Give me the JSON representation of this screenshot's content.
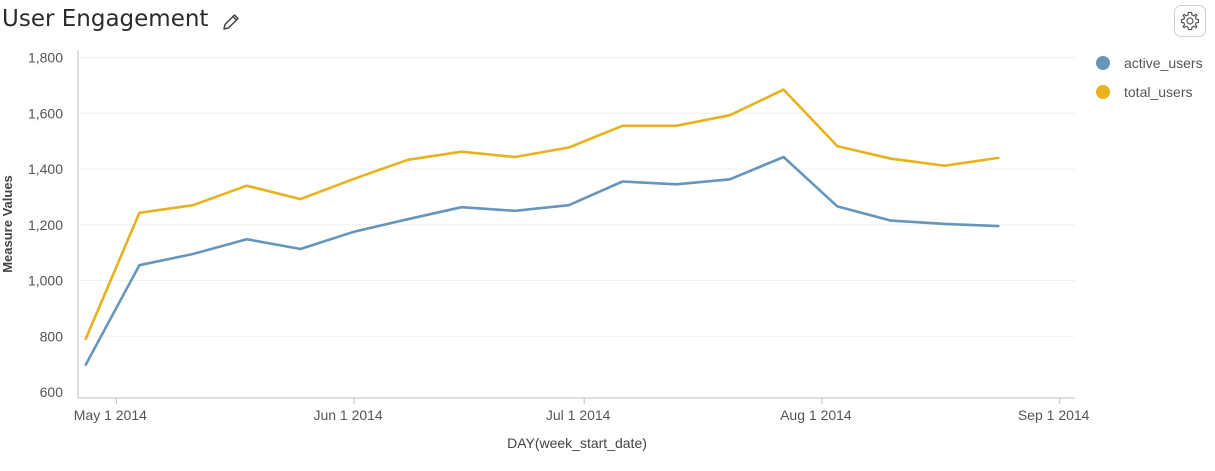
{
  "header": {
    "title": "User Engagement",
    "edit_icon": "pencil-icon",
    "settings_icon": "gear-icon"
  },
  "chart_data": {
    "type": "line",
    "xlabel": "DAY(week_start_date)",
    "ylabel": "Measure Values",
    "ylim": [
      600,
      1800
    ],
    "y_ticks": [
      600,
      800,
      1000,
      1200,
      1400,
      1600,
      1800
    ],
    "y_tick_labels": [
      "600",
      "800",
      "1,000",
      "1,200",
      "1,400",
      "1,600",
      "1,800"
    ],
    "x_ticks": [
      "2014-05-01",
      "2014-06-01",
      "2014-07-01",
      "2014-08-01",
      "2014-09-01"
    ],
    "x_tick_labels": [
      "May 1 2014",
      "Jun 1 2014",
      "Jul 1 2014",
      "Aug 1 2014",
      "Sep 1 2014"
    ],
    "xlim": [
      "2014-04-26",
      "2014-09-03"
    ],
    "grid": true,
    "legend_position": "top-right",
    "x": [
      "2014-04-27",
      "2014-05-04",
      "2014-05-11",
      "2014-05-18",
      "2014-05-25",
      "2014-06-01",
      "2014-06-08",
      "2014-06-15",
      "2014-06-22",
      "2014-06-29",
      "2014-07-06",
      "2014-07-13",
      "2014-07-20",
      "2014-07-27",
      "2014-08-03",
      "2014-08-10",
      "2014-08-17",
      "2014-08-24"
    ],
    "series": [
      {
        "name": "active_users",
        "color": "#6696bb",
        "values": [
          698,
          1055,
          1095,
          1148,
          1113,
          1175,
          1220,
          1263,
          1250,
          1270,
          1355,
          1345,
          1363,
          1443,
          1266,
          1215,
          1203,
          1195
        ]
      },
      {
        "name": "total_users",
        "color": "#e8b21e",
        "values": [
          790,
          1243,
          1270,
          1340,
          1292,
          1365,
          1433,
          1462,
          1443,
          1477,
          1555,
          1555,
          1593,
          1685,
          1482,
          1437,
          1412,
          1440
        ]
      }
    ]
  }
}
